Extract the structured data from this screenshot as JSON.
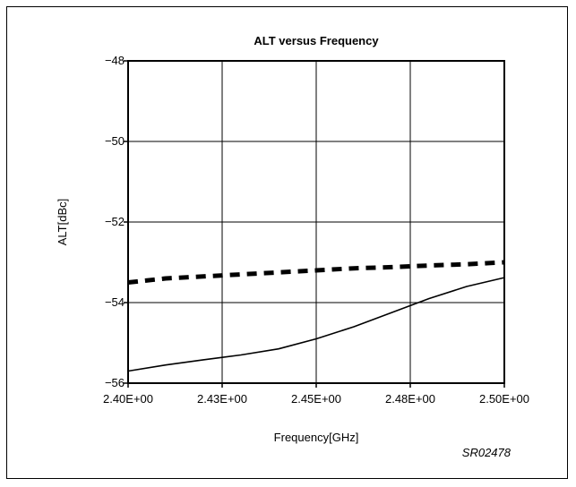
{
  "chart_data": {
    "type": "line",
    "title": "ALT versus Frequency",
    "xlabel": "Frequency[GHz]",
    "ylabel": "ALT[dBc]",
    "x_ticks": [
      {
        "value": 2.4,
        "label": "2.40E+00"
      },
      {
        "value": 2.425,
        "label": "2.43E+00"
      },
      {
        "value": 2.45,
        "label": "2.45E+00"
      },
      {
        "value": 2.475,
        "label": "2.48E+00"
      },
      {
        "value": 2.5,
        "label": "2.50E+00"
      }
    ],
    "y_ticks": [
      {
        "value": -48,
        "label": "−48"
      },
      {
        "value": -50,
        "label": "−50"
      },
      {
        "value": -52,
        "label": "−52"
      },
      {
        "value": -54,
        "label": "−54"
      },
      {
        "value": -56,
        "label": "−56"
      }
    ],
    "xlim": [
      2.4,
      2.5
    ],
    "ylim": [
      -56,
      -48
    ],
    "grid": true,
    "series": [
      {
        "style": "dashed-thick",
        "color": "#000000",
        "x": [
          2.4,
          2.41,
          2.42,
          2.43,
          2.44,
          2.45,
          2.46,
          2.47,
          2.48,
          2.49,
          2.5
        ],
        "y": [
          -53.5,
          -53.4,
          -53.35,
          -53.3,
          -53.25,
          -53.2,
          -53.15,
          -53.12,
          -53.08,
          -53.05,
          -53.0
        ]
      },
      {
        "style": "solid",
        "color": "#000000",
        "x": [
          2.4,
          2.41,
          2.42,
          2.43,
          2.44,
          2.45,
          2.46,
          2.47,
          2.48,
          2.49,
          2.5
        ],
        "y": [
          -55.7,
          -55.55,
          -55.42,
          -55.3,
          -55.15,
          -54.9,
          -54.6,
          -54.25,
          -53.9,
          -53.6,
          -53.38
        ]
      }
    ]
  },
  "figure_code": "SR02478"
}
